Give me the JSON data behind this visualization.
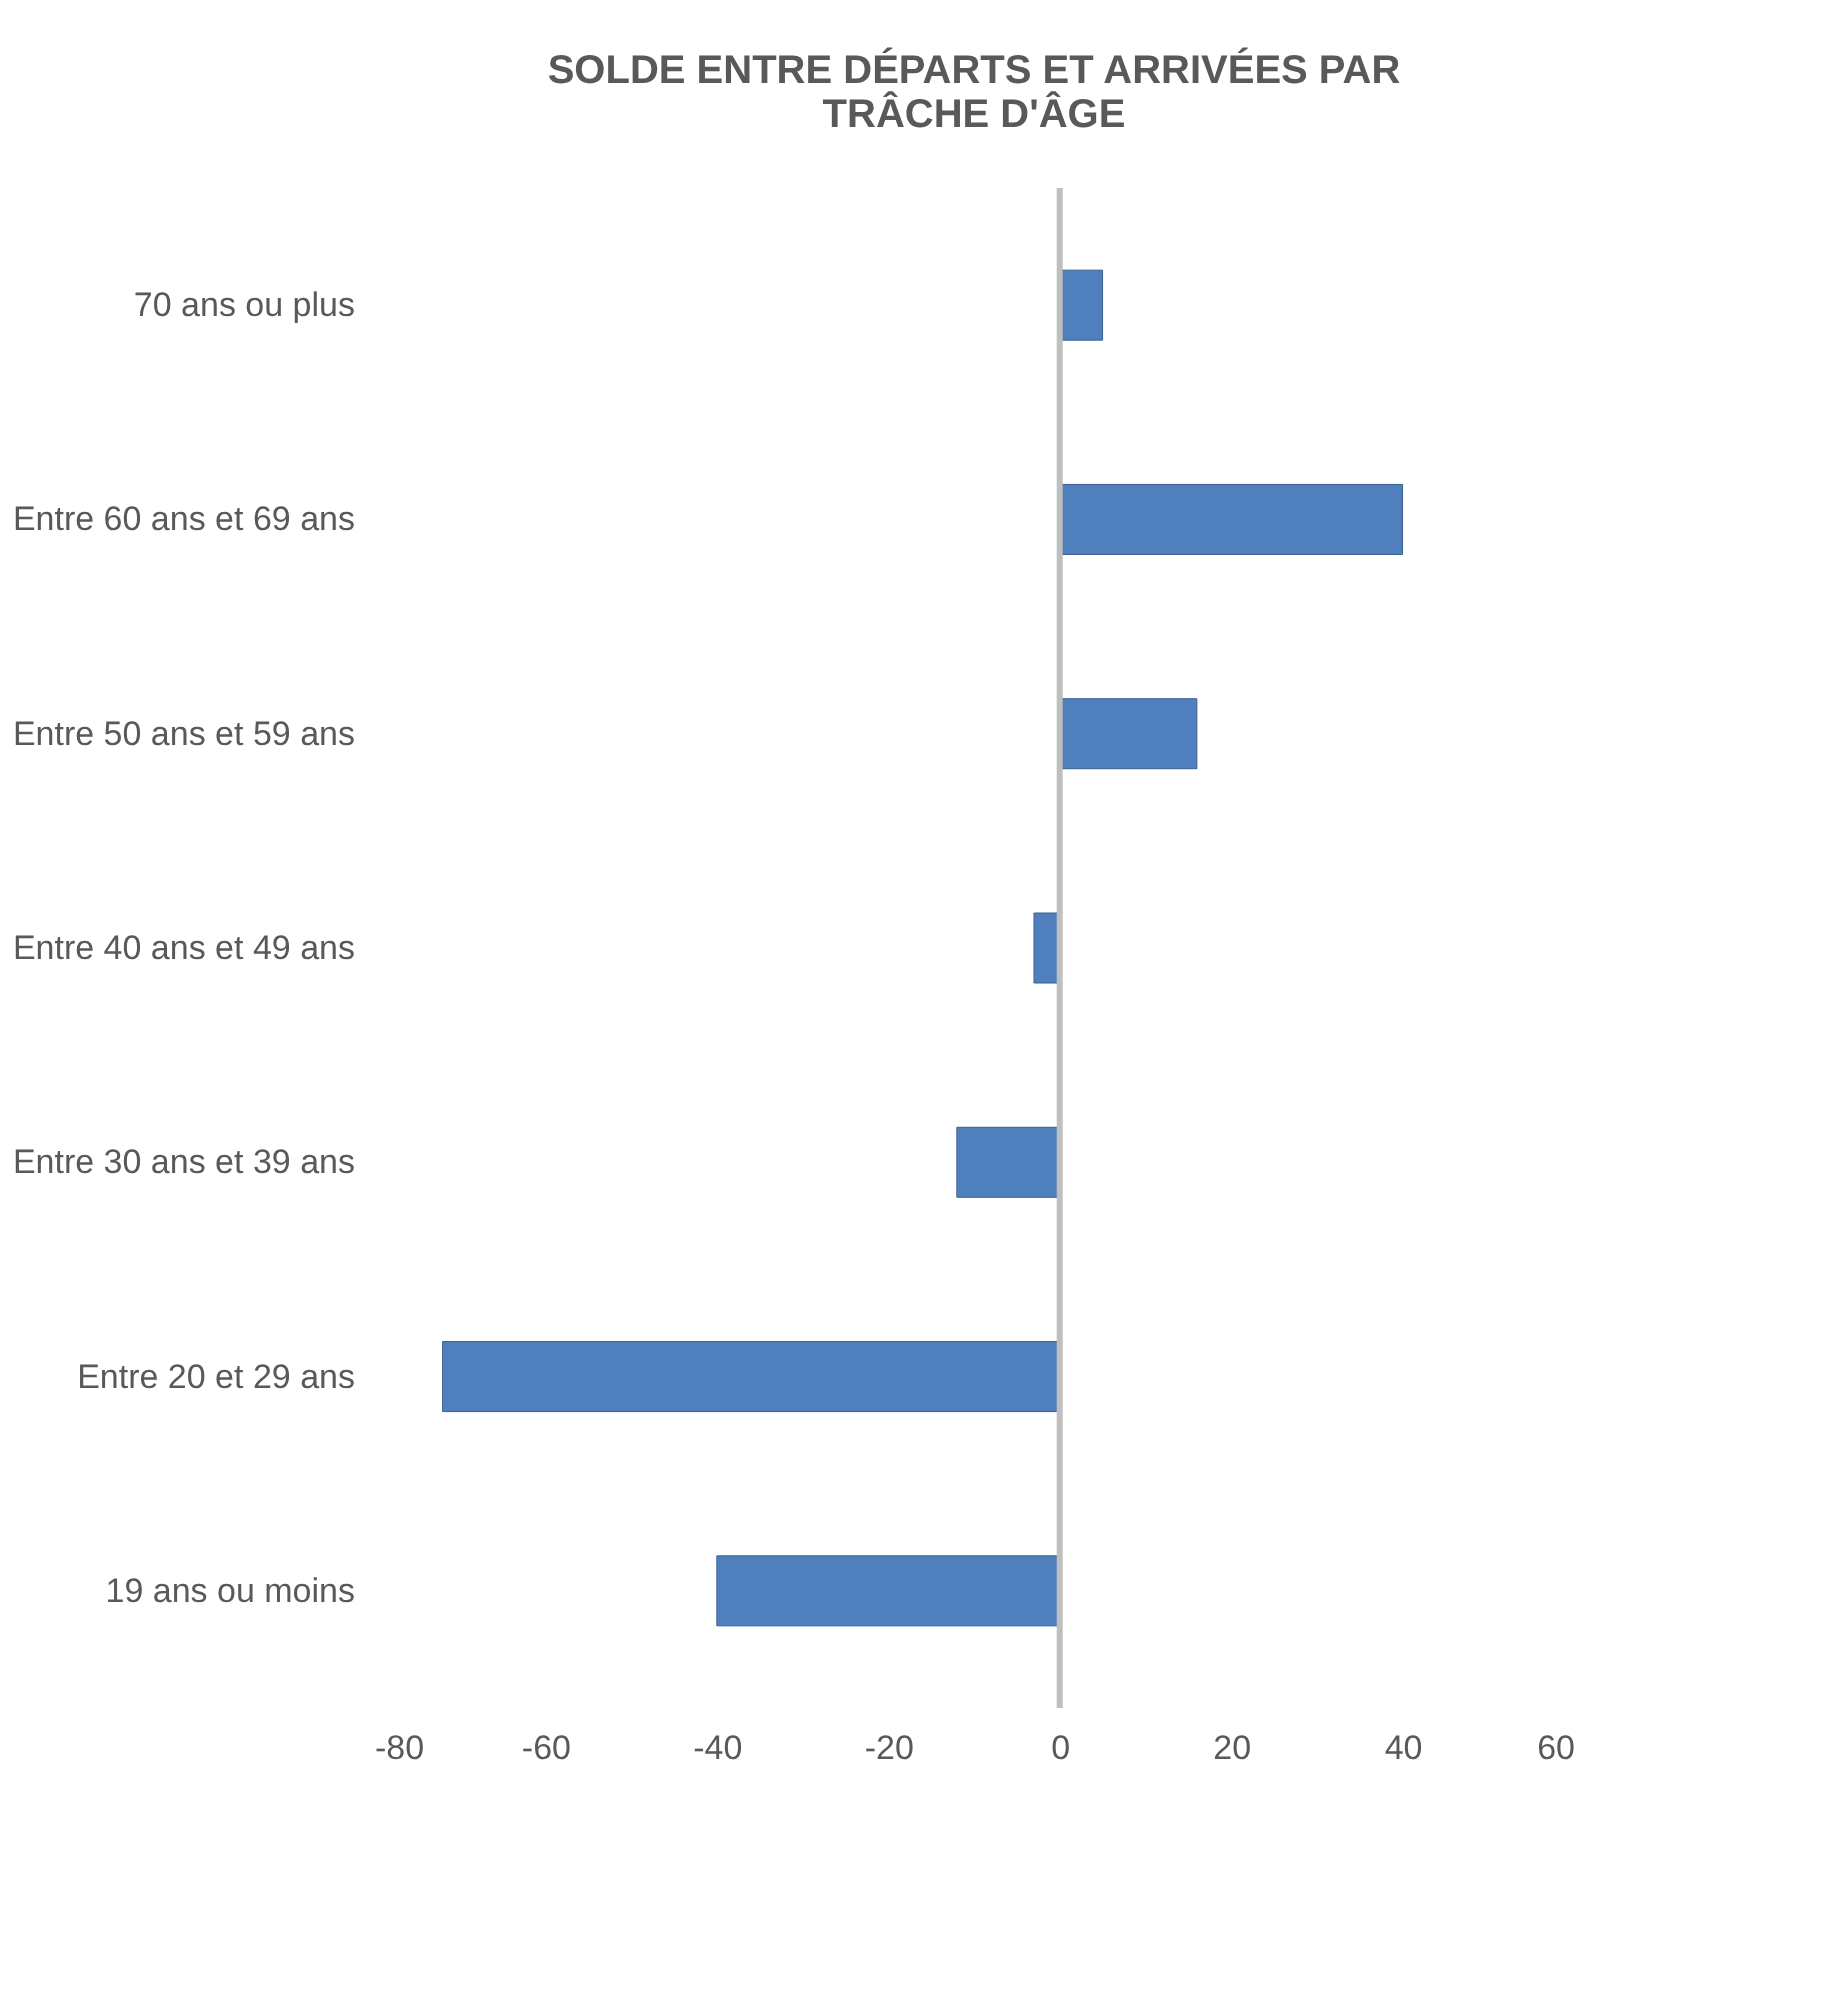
{
  "chart_data": {
    "type": "bar",
    "orientation": "horizontal",
    "title": [
      "SOLDE ENTRE DÉPARTS ET ARRIVÉES PAR",
      "TRÂCHE D'ÂGE"
    ],
    "categories": [
      "70 ans ou plus",
      "Entre 60 ans et 69 ans",
      "Entre 50 ans et 59 ans",
      "Entre 40 ans et 49 ans",
      "Entre 30 ans et 39 ans",
      "Entre 20 et 29 ans",
      "19 ans ou moins"
    ],
    "values": [
      5,
      40,
      16,
      -3,
      -12,
      -72,
      -40
    ],
    "color": "#4f7fbd",
    "xlim": [
      -80,
      60
    ],
    "xticks": [
      -80,
      -60,
      -40,
      -20,
      0,
      20,
      40,
      60
    ],
    "ref_lines": [
      {
        "axis": "x",
        "value": 0,
        "color": "#bfbfbf"
      }
    ],
    "grid": false
  }
}
